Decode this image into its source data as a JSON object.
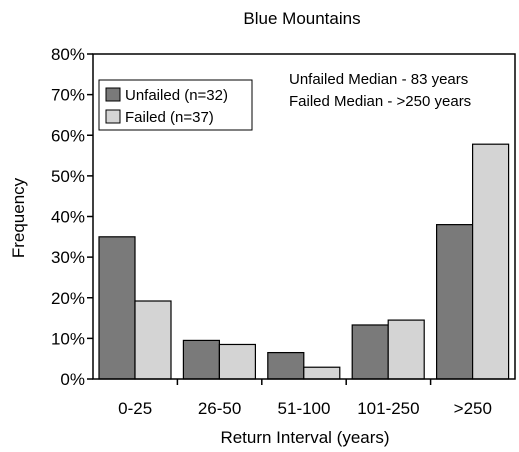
{
  "chart_data": {
    "type": "bar",
    "title": "Blue Mountains",
    "xlabel": "Return Interval (years)",
    "ylabel": "Frequency",
    "categories": [
      "0-25",
      "26-50",
      "51-100",
      "101-250",
      ">250"
    ],
    "series": [
      {
        "name": "Unfailed (n=32)",
        "values": [
          35,
          9.5,
          6.5,
          13.3,
          38
        ],
        "color": "#7a7a7a"
      },
      {
        "name": "Failed (n=37)",
        "values": [
          19.2,
          8.5,
          2.9,
          14.5,
          57.8
        ],
        "color": "#d4d4d4"
      }
    ],
    "ylim": [
      0,
      80
    ],
    "yticks": [
      "0%",
      "10%",
      "20%",
      "30%",
      "40%",
      "50%",
      "60%",
      "70%",
      "80%"
    ],
    "annotations": [
      "Unfailed Median - 83 years",
      "Failed Median - >250 years"
    ],
    "legend_position": "top-left",
    "grid": false
  }
}
